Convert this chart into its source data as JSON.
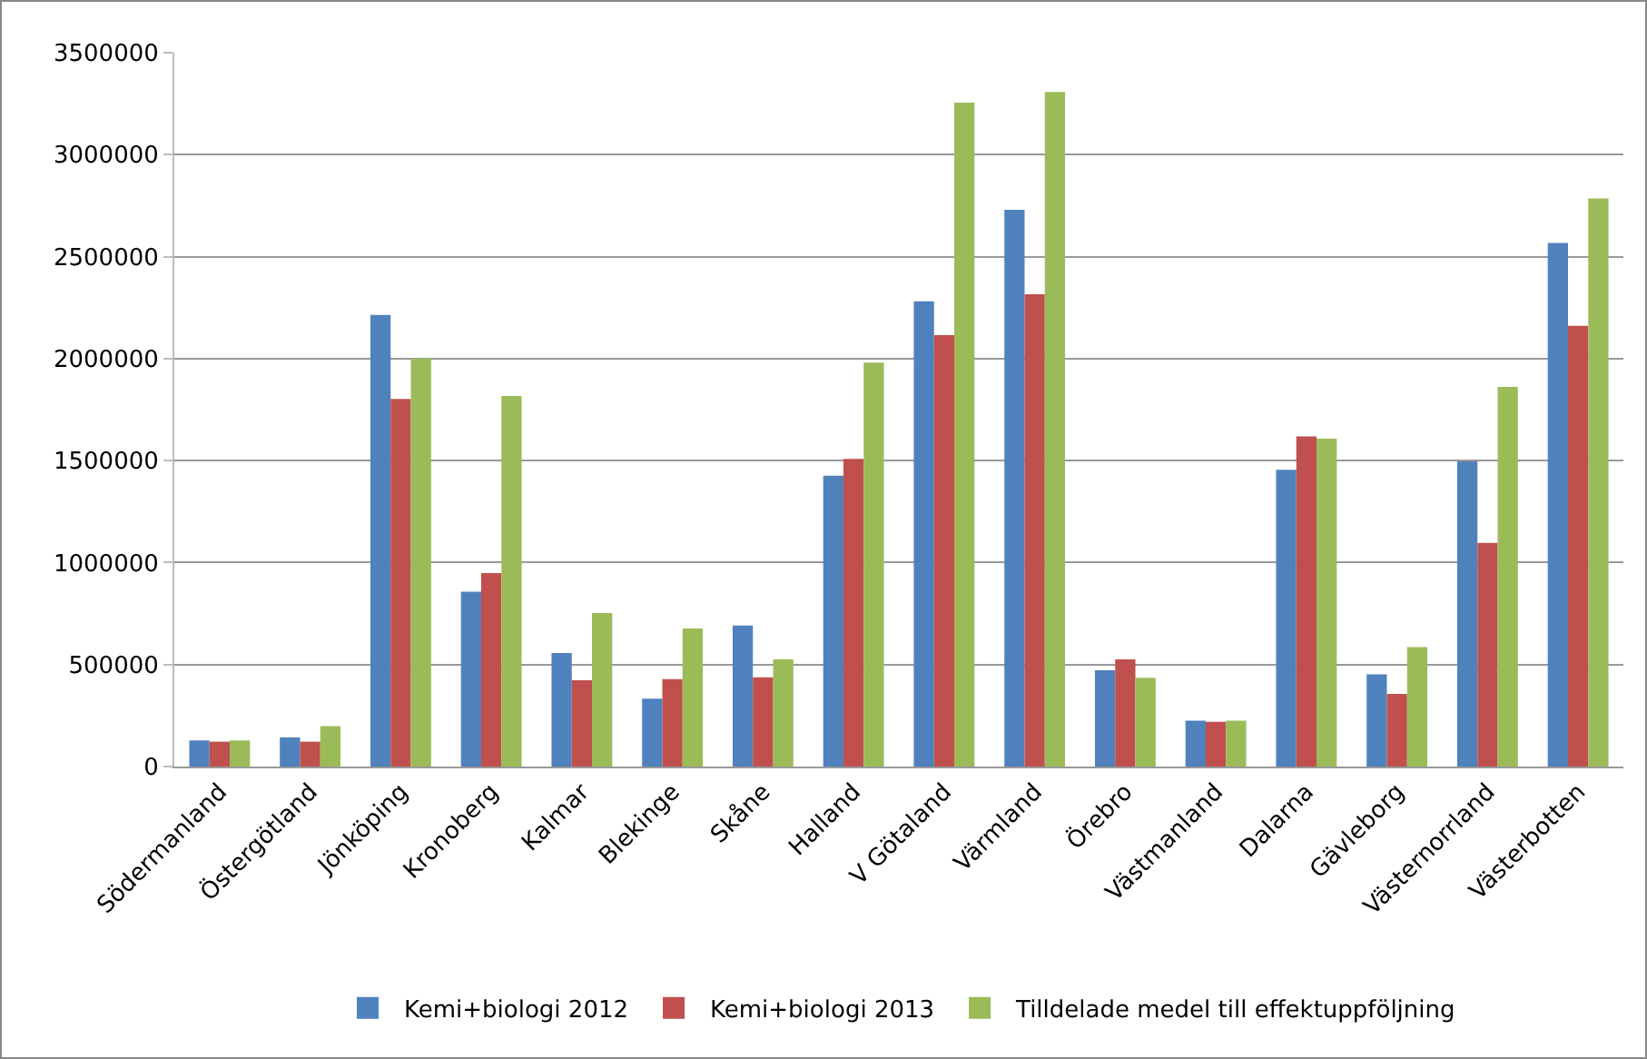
{
  "chart_data": {
    "type": "bar",
    "categories": [
      "Södermanland",
      "Östergötland",
      "Jönköping",
      "Kronoberg",
      "Kalmar",
      "Blekinge",
      "Skåne",
      "Halland",
      "V Götaland",
      "Värmland",
      "Örebro",
      "Västmanland",
      "Dalarna",
      "Gävleborg",
      "Västernorrland",
      "Västerbotten"
    ],
    "series": [
      {
        "name": "Kemi+biologi 2012",
        "color": "#4f81bd",
        "values": [
          128000,
          143000,
          2214000,
          857000,
          557000,
          333000,
          691000,
          1426000,
          2281000,
          2730000,
          472000,
          225000,
          1455000,
          452000,
          1496000,
          2567000
        ]
      },
      {
        "name": "Kemi+biologi 2013",
        "color": "#c0504d",
        "values": [
          122000,
          122000,
          1802000,
          948000,
          423000,
          429000,
          437000,
          1508000,
          2115000,
          2316000,
          525000,
          219000,
          1619000,
          356000,
          1097000,
          2161000
        ]
      },
      {
        "name": "Tilldelade medel till effektuppföljning",
        "color": "#9bbb59",
        "values": [
          128000,
          198000,
          2000000,
          1817000,
          752000,
          677000,
          525000,
          1980000,
          3255000,
          3307000,
          435000,
          225000,
          1607000,
          586000,
          1861000,
          2785000
        ]
      }
    ],
    "ylim": [
      0,
      3500000
    ],
    "yticks": [
      0,
      500000,
      1000000,
      1500000,
      2000000,
      2500000,
      3000000,
      3500000
    ],
    "grid": "y",
    "legend": "bottom"
  }
}
